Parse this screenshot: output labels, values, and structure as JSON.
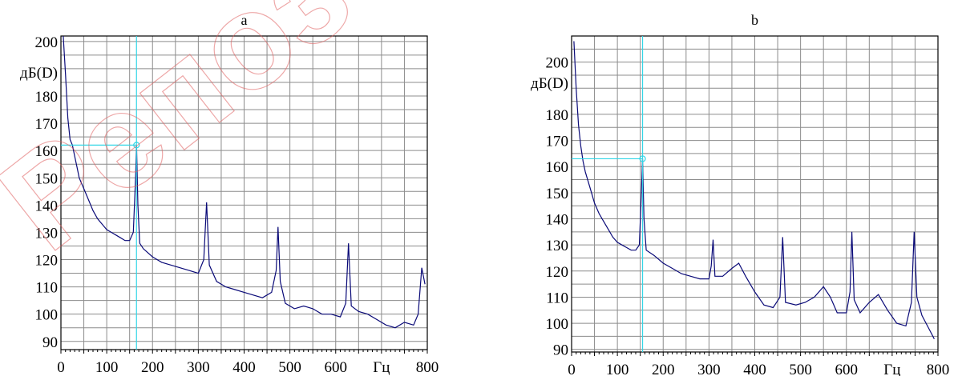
{
  "watermark": "Репоз",
  "chart_data": [
    {
      "type": "line",
      "title": "a",
      "ylabel": "дБ(D)",
      "xlabel": "Гц",
      "xlim": [
        0,
        800
      ],
      "ylim": [
        87,
        202
      ],
      "x_ticks": [
        "0",
        "100",
        "200",
        "300",
        "400",
        "500",
        "600",
        "",
        "800"
      ],
      "y_ticks": [
        "200",
        "",
        "180",
        "170",
        "160",
        "150",
        "140",
        "130",
        "120",
        "110",
        "100",
        "90"
      ],
      "grid": true,
      "colors": {
        "series": "#0a0a78",
        "cursor": "#33d6e6"
      },
      "cursor": {
        "x": 165,
        "y": 162
      },
      "series": [
        {
          "values": [
            {
              "x": 5,
              "y": 202
            },
            {
              "x": 10,
              "y": 188
            },
            {
              "x": 15,
              "y": 172
            },
            {
              "x": 20,
              "y": 164
            },
            {
              "x": 25,
              "y": 162
            },
            {
              "x": 30,
              "y": 158
            },
            {
              "x": 35,
              "y": 154
            },
            {
              "x": 40,
              "y": 150
            },
            {
              "x": 50,
              "y": 146
            },
            {
              "x": 60,
              "y": 142
            },
            {
              "x": 70,
              "y": 138
            },
            {
              "x": 80,
              "y": 135
            },
            {
              "x": 90,
              "y": 133
            },
            {
              "x": 100,
              "y": 131
            },
            {
              "x": 110,
              "y": 130
            },
            {
              "x": 120,
              "y": 129
            },
            {
              "x": 130,
              "y": 128
            },
            {
              "x": 140,
              "y": 127
            },
            {
              "x": 150,
              "y": 127
            },
            {
              "x": 158,
              "y": 130
            },
            {
              "x": 163,
              "y": 150
            },
            {
              "x": 165,
              "y": 162
            },
            {
              "x": 168,
              "y": 140
            },
            {
              "x": 172,
              "y": 126
            },
            {
              "x": 180,
              "y": 124
            },
            {
              "x": 200,
              "y": 121
            },
            {
              "x": 220,
              "y": 119
            },
            {
              "x": 240,
              "y": 118
            },
            {
              "x": 260,
              "y": 117
            },
            {
              "x": 280,
              "y": 116
            },
            {
              "x": 300,
              "y": 115
            },
            {
              "x": 312,
              "y": 120
            },
            {
              "x": 318,
              "y": 141
            },
            {
              "x": 324,
              "y": 118
            },
            {
              "x": 340,
              "y": 112
            },
            {
              "x": 360,
              "y": 110
            },
            {
              "x": 380,
              "y": 109
            },
            {
              "x": 400,
              "y": 108
            },
            {
              "x": 420,
              "y": 107
            },
            {
              "x": 440,
              "y": 106
            },
            {
              "x": 460,
              "y": 108
            },
            {
              "x": 470,
              "y": 116
            },
            {
              "x": 474,
              "y": 132
            },
            {
              "x": 479,
              "y": 112
            },
            {
              "x": 490,
              "y": 104
            },
            {
              "x": 510,
              "y": 102
            },
            {
              "x": 530,
              "y": 103
            },
            {
              "x": 550,
              "y": 102
            },
            {
              "x": 570,
              "y": 100
            },
            {
              "x": 590,
              "y": 100
            },
            {
              "x": 610,
              "y": 99
            },
            {
              "x": 622,
              "y": 104
            },
            {
              "x": 628,
              "y": 126
            },
            {
              "x": 634,
              "y": 103
            },
            {
              "x": 650,
              "y": 101
            },
            {
              "x": 670,
              "y": 100
            },
            {
              "x": 690,
              "y": 98
            },
            {
              "x": 710,
              "y": 96
            },
            {
              "x": 730,
              "y": 95
            },
            {
              "x": 750,
              "y": 97
            },
            {
              "x": 770,
              "y": 96
            },
            {
              "x": 780,
              "y": 100
            },
            {
              "x": 788,
              "y": 117
            },
            {
              "x": 795,
              "y": 111
            }
          ]
        }
      ]
    },
    {
      "type": "line",
      "title": "b",
      "ylabel": "дБ(D)",
      "xlabel": "Гц",
      "xlim": [
        0,
        800
      ],
      "ylim": [
        89,
        210
      ],
      "x_ticks": [
        "0",
        "100",
        "200",
        "300",
        "400",
        "500",
        "600",
        "",
        "800"
      ],
      "y_ticks": [
        "200",
        "",
        "180",
        "170",
        "160",
        "150",
        "140",
        "130",
        "120",
        "110",
        "100",
        "90"
      ],
      "grid": true,
      "colors": {
        "series": "#0a0a78",
        "cursor": "#33d6e6"
      },
      "cursor": {
        "x": 155,
        "y": 163
      },
      "series": [
        {
          "values": [
            {
              "x": 5,
              "y": 208
            },
            {
              "x": 10,
              "y": 190
            },
            {
              "x": 15,
              "y": 176
            },
            {
              "x": 20,
              "y": 168
            },
            {
              "x": 25,
              "y": 162
            },
            {
              "x": 30,
              "y": 158
            },
            {
              "x": 40,
              "y": 152
            },
            {
              "x": 50,
              "y": 146
            },
            {
              "x": 60,
              "y": 142
            },
            {
              "x": 70,
              "y": 139
            },
            {
              "x": 80,
              "y": 136
            },
            {
              "x": 90,
              "y": 133
            },
            {
              "x": 100,
              "y": 131
            },
            {
              "x": 110,
              "y": 130
            },
            {
              "x": 120,
              "y": 129
            },
            {
              "x": 130,
              "y": 128
            },
            {
              "x": 140,
              "y": 128
            },
            {
              "x": 148,
              "y": 130
            },
            {
              "x": 152,
              "y": 148
            },
            {
              "x": 155,
              "y": 163
            },
            {
              "x": 158,
              "y": 140
            },
            {
              "x": 163,
              "y": 128
            },
            {
              "x": 180,
              "y": 126
            },
            {
              "x": 200,
              "y": 123
            },
            {
              "x": 220,
              "y": 121
            },
            {
              "x": 240,
              "y": 119
            },
            {
              "x": 260,
              "y": 118
            },
            {
              "x": 280,
              "y": 117
            },
            {
              "x": 300,
              "y": 117
            },
            {
              "x": 305,
              "y": 122
            },
            {
              "x": 309,
              "y": 132
            },
            {
              "x": 313,
              "y": 118
            },
            {
              "x": 330,
              "y": 118
            },
            {
              "x": 350,
              "y": 121
            },
            {
              "x": 365,
              "y": 123
            },
            {
              "x": 380,
              "y": 118
            },
            {
              "x": 400,
              "y": 112
            },
            {
              "x": 420,
              "y": 107
            },
            {
              "x": 440,
              "y": 106
            },
            {
              "x": 455,
              "y": 110
            },
            {
              "x": 461,
              "y": 133
            },
            {
              "x": 467,
              "y": 108
            },
            {
              "x": 490,
              "y": 107
            },
            {
              "x": 510,
              "y": 108
            },
            {
              "x": 530,
              "y": 110
            },
            {
              "x": 550,
              "y": 114
            },
            {
              "x": 565,
              "y": 110
            },
            {
              "x": 580,
              "y": 104
            },
            {
              "x": 600,
              "y": 104
            },
            {
              "x": 608,
              "y": 112
            },
            {
              "x": 612,
              "y": 135
            },
            {
              "x": 617,
              "y": 109
            },
            {
              "x": 630,
              "y": 104
            },
            {
              "x": 650,
              "y": 108
            },
            {
              "x": 670,
              "y": 111
            },
            {
              "x": 690,
              "y": 105
            },
            {
              "x": 710,
              "y": 100
            },
            {
              "x": 730,
              "y": 99
            },
            {
              "x": 742,
              "y": 108
            },
            {
              "x": 748,
              "y": 135
            },
            {
              "x": 754,
              "y": 110
            },
            {
              "x": 765,
              "y": 103
            },
            {
              "x": 780,
              "y": 98
            },
            {
              "x": 792,
              "y": 94
            }
          ]
        }
      ]
    }
  ]
}
